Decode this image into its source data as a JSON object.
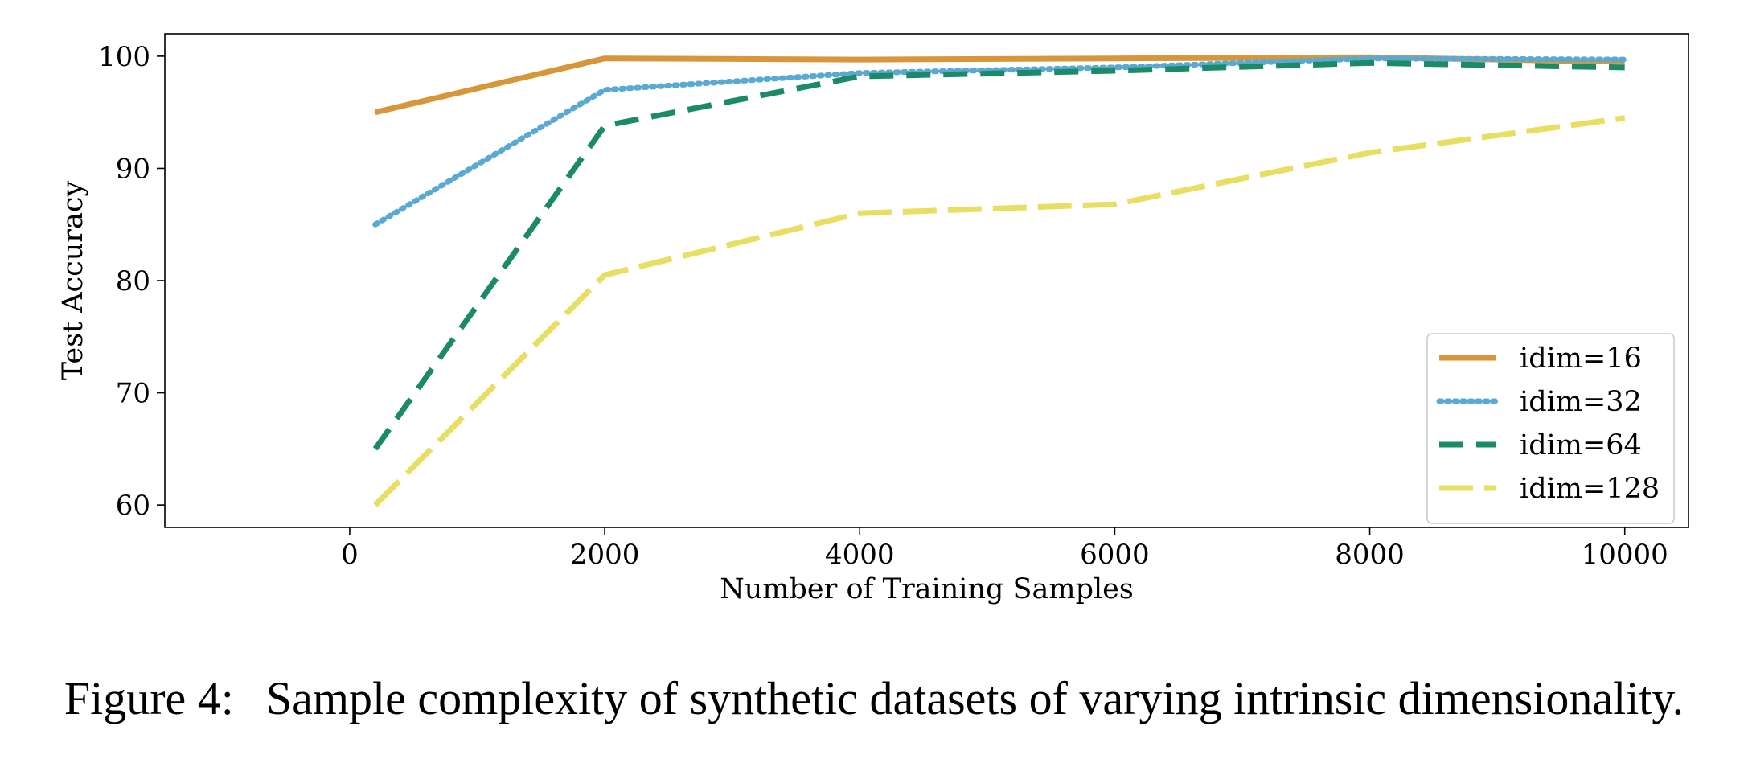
{
  "caption": {
    "label": "Figure 4:",
    "text": "Sample complexity of synthetic datasets of varying intrinsic dimensionality."
  },
  "chart_data": {
    "type": "line",
    "xlabel": "Number of Training Samples",
    "ylabel": "Test Accuracy",
    "xlim": [
      -1450,
      10500
    ],
    "ylim": [
      58,
      102
    ],
    "xticks": [
      0,
      2000,
      4000,
      6000,
      8000,
      10000
    ],
    "yticks": [
      60,
      70,
      80,
      90,
      100
    ],
    "grid": false,
    "legend_position": "lower-right",
    "series": [
      {
        "name": "idim=16",
        "color": "#d8963a",
        "style": "solid",
        "x": [
          200,
          2000,
          4000,
          6000,
          8000,
          10000
        ],
        "y": [
          95,
          99.8,
          99.7,
          99.8,
          99.9,
          99.5
        ]
      },
      {
        "name": "idim=32",
        "color": "#5aa9d3",
        "style": "dotted",
        "x": [
          200,
          2000,
          4000,
          6000,
          8000,
          10000
        ],
        "y": [
          85,
          97,
          98.5,
          99,
          99.8,
          99.7
        ]
      },
      {
        "name": "idim=64",
        "color": "#1a8a67",
        "style": "dashed",
        "x": [
          200,
          2000,
          4000,
          6000,
          8000,
          10000
        ],
        "y": [
          65,
          93.8,
          98.2,
          98.7,
          99.4,
          99
        ]
      },
      {
        "name": "idim=128",
        "color": "#e8de62",
        "style": "longdash",
        "x": [
          200,
          2000,
          4000,
          6000,
          8000,
          10000
        ],
        "y": [
          60,
          80.5,
          86,
          86.8,
          91.4,
          94.5
        ]
      }
    ]
  }
}
